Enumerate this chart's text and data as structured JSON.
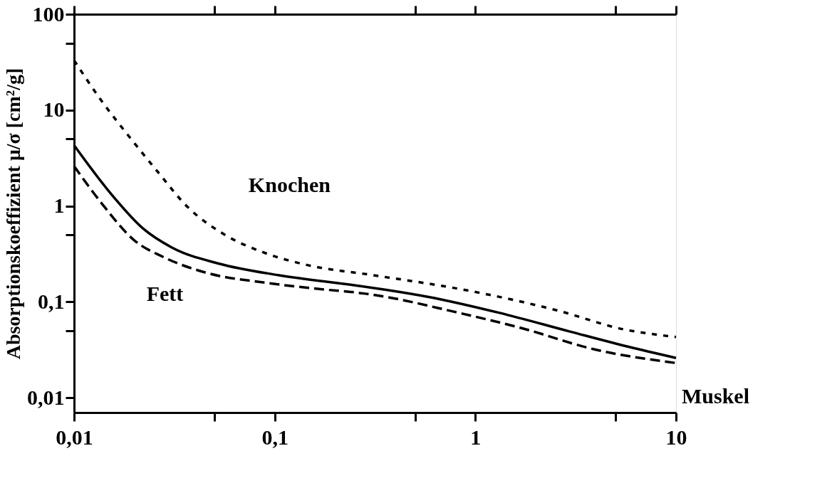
{
  "chart_data": {
    "type": "line",
    "ylabel": "Absorptionskoeffizient μ/σ [cm²/g]",
    "log": "xy",
    "grid": false,
    "xlim": [
      0.01,
      10
    ],
    "ylim": [
      0.007,
      100
    ],
    "xticks": [
      {
        "value": 0.01,
        "label": "0,01"
      },
      {
        "value": 0.05,
        "label": null
      },
      {
        "value": 0.1,
        "label": "0,1"
      },
      {
        "value": 0.5,
        "label": null
      },
      1,
      {
        "value": 5,
        "label": null
      },
      10
    ],
    "yticks": [
      {
        "value": 0.01,
        "label": "0,01"
      },
      {
        "value": 0.05,
        "label": null
      },
      {
        "value": 0.1,
        "label": "0,1"
      },
      {
        "value": 0.5,
        "label": null
      },
      1,
      {
        "value": 5,
        "label": null
      },
      10,
      {
        "value": 50,
        "label": null
      },
      100
    ],
    "series": [
      {
        "name": "Knochen",
        "color": "#000000",
        "line_style": "dotted",
        "x": [
          0.01,
          0.0137,
          0.0188,
          0.026,
          0.0369,
          0.0556,
          0.0906,
          0.148,
          0.308,
          0.94,
          2.58,
          5.4,
          10
        ],
        "values": [
          33,
          12.5,
          5.3,
          2.3,
          0.97,
          0.51,
          0.32,
          0.24,
          0.19,
          0.13,
          0.081,
          0.052,
          0.043
        ]
      },
      {
        "name": "Muskel",
        "color": "#000000",
        "line_style": "solid",
        "x": [
          0.01,
          0.0155,
          0.0221,
          0.0306,
          0.0529,
          0.104,
          0.256,
          0.355,
          0.578,
          1.31,
          2.96,
          5.8,
          10
        ],
        "values": [
          4.3,
          1.29,
          0.58,
          0.37,
          0.25,
          0.19,
          0.148,
          0.134,
          0.113,
          0.077,
          0.049,
          0.034,
          0.026
        ]
      },
      {
        "name": "Fett",
        "color": "#000000",
        "line_style": "dashed",
        "x": [
          0.01,
          0.0139,
          0.0199,
          0.0282,
          0.046,
          0.0906,
          0.18,
          0.256,
          0.355,
          0.76,
          1.71,
          3.9,
          10
        ],
        "values": [
          2.6,
          1.03,
          0.44,
          0.29,
          0.2,
          0.158,
          0.134,
          0.125,
          0.113,
          0.08,
          0.053,
          0.032,
          0.023
        ]
      }
    ]
  }
}
